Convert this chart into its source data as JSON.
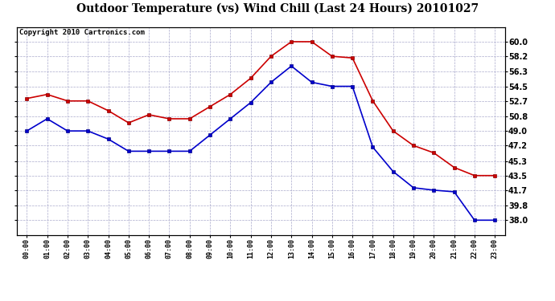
{
  "title": "Outdoor Temperature (vs) Wind Chill (Last 24 Hours) 20101027",
  "copyright": "Copyright 2010 Cartronics.com",
  "hours": [
    "00:00",
    "01:00",
    "02:00",
    "03:00",
    "04:00",
    "05:00",
    "06:00",
    "07:00",
    "08:00",
    "09:00",
    "10:00",
    "11:00",
    "12:00",
    "13:00",
    "14:00",
    "15:00",
    "16:00",
    "17:00",
    "18:00",
    "19:00",
    "20:00",
    "21:00",
    "22:00",
    "23:00"
  ],
  "temp": [
    53.0,
    53.5,
    52.7,
    52.7,
    51.5,
    50.0,
    51.0,
    50.5,
    50.5,
    52.0,
    53.5,
    55.5,
    58.2,
    60.0,
    60.0,
    58.2,
    58.0,
    52.7,
    49.0,
    47.2,
    46.3,
    44.5,
    43.5,
    43.5
  ],
  "windchill": [
    49.0,
    50.5,
    49.0,
    49.0,
    48.0,
    46.5,
    46.5,
    46.5,
    46.5,
    48.5,
    50.5,
    52.5,
    55.0,
    57.0,
    55.0,
    54.5,
    54.5,
    47.0,
    44.0,
    42.0,
    41.7,
    41.5,
    38.0,
    38.0
  ],
  "temp_color": "#cc0000",
  "windchill_color": "#0000cc",
  "marker": "s",
  "markersize": 3,
  "linewidth": 1.2,
  "ylim_min": 36.2,
  "ylim_max": 61.8,
  "yticks": [
    38.0,
    39.8,
    41.7,
    43.5,
    45.3,
    47.2,
    49.0,
    50.8,
    52.7,
    54.5,
    56.3,
    58.2,
    60.0
  ],
  "grid_color": "#aaaacc",
  "bg_color": "#ffffff",
  "title_fontsize": 10,
  "copyright_fontsize": 6.5
}
